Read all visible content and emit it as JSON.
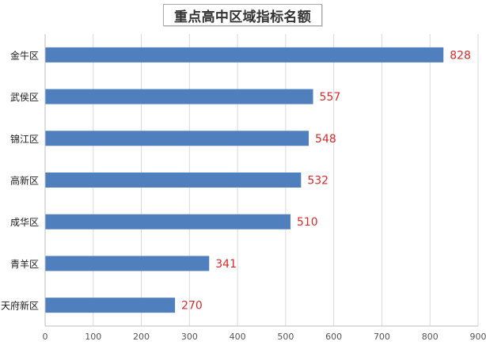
{
  "chart_data": {
    "type": "bar",
    "orientation": "horizontal",
    "title": "重点高中区域指标名额",
    "categories": [
      "金牛区",
      "武侯区",
      "锦江区",
      "高新区",
      "成华区",
      "青羊区",
      "天府新区"
    ],
    "values": [
      828,
      557,
      548,
      532,
      510,
      341,
      270
    ],
    "xlim": [
      0,
      900
    ],
    "x_ticks": [
      0,
      100,
      200,
      300,
      400,
      500,
      600,
      700,
      800,
      900
    ],
    "xlabel": "",
    "ylabel": "",
    "grid": "vertical",
    "legend": "none",
    "data_labels": true,
    "colors": {
      "bar": "#4f7fbd",
      "data_label": "#d42b2b",
      "grid": "#d9d9d9",
      "axis": "#bfbfbf",
      "tick_label": "#555555",
      "category_label": "#1a1a1a"
    }
  }
}
